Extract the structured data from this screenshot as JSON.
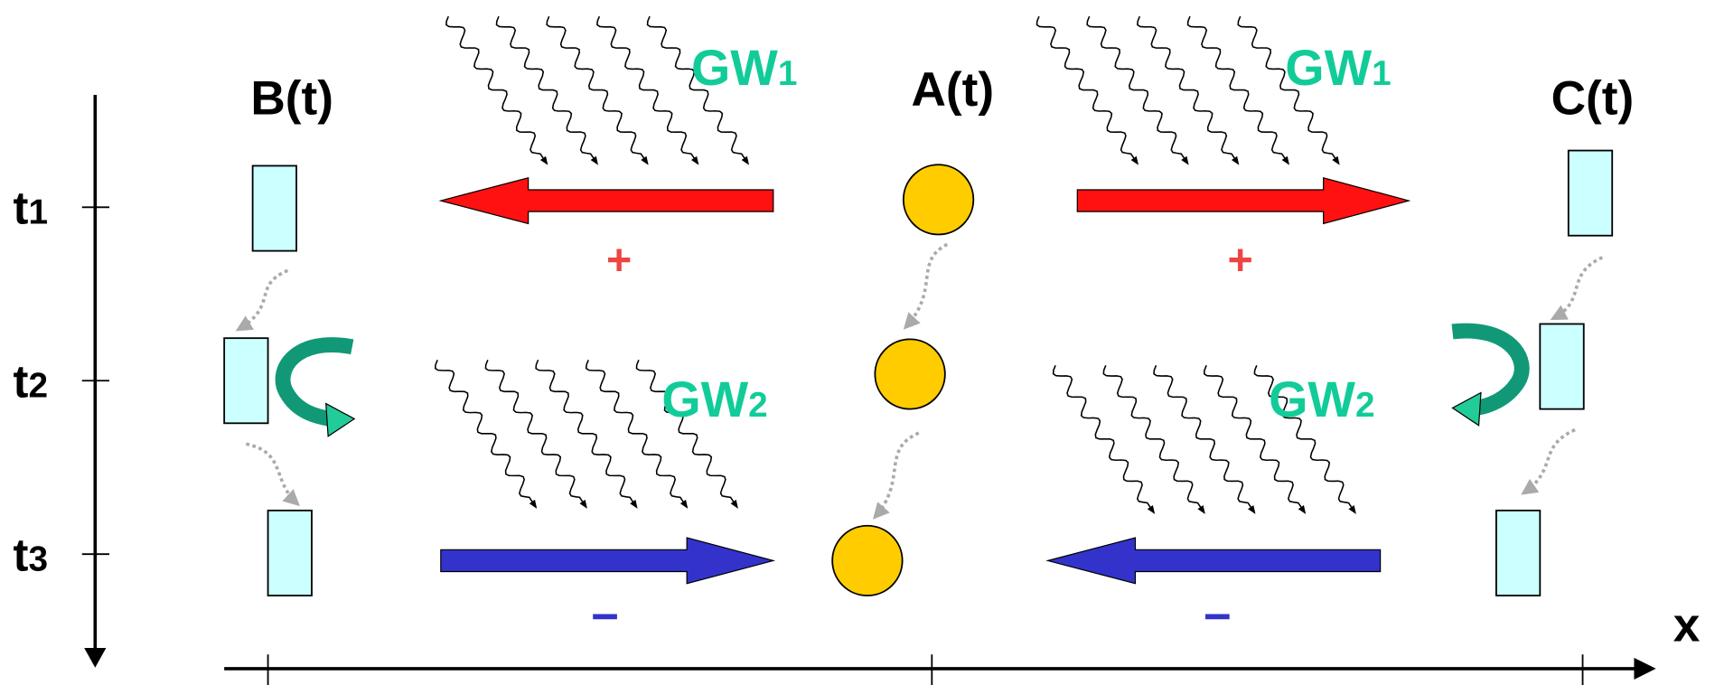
{
  "columns": [
    {
      "label": "B(t)"
    },
    {
      "label": "A(t)"
    },
    {
      "label": "C(t)"
    }
  ],
  "waves": [
    {
      "name": "GW",
      "sub": "1"
    },
    {
      "name": "GW",
      "sub": "1"
    },
    {
      "name": "GW",
      "sub": "2"
    },
    {
      "name": "GW",
      "sub": "2"
    }
  ],
  "time_labels": [
    {
      "name": "t",
      "sub": "1"
    },
    {
      "name": "t",
      "sub": "2"
    },
    {
      "name": "t",
      "sub": "3"
    }
  ],
  "signs": [
    "+",
    "+",
    "−",
    "−"
  ],
  "axis_label": "x"
}
